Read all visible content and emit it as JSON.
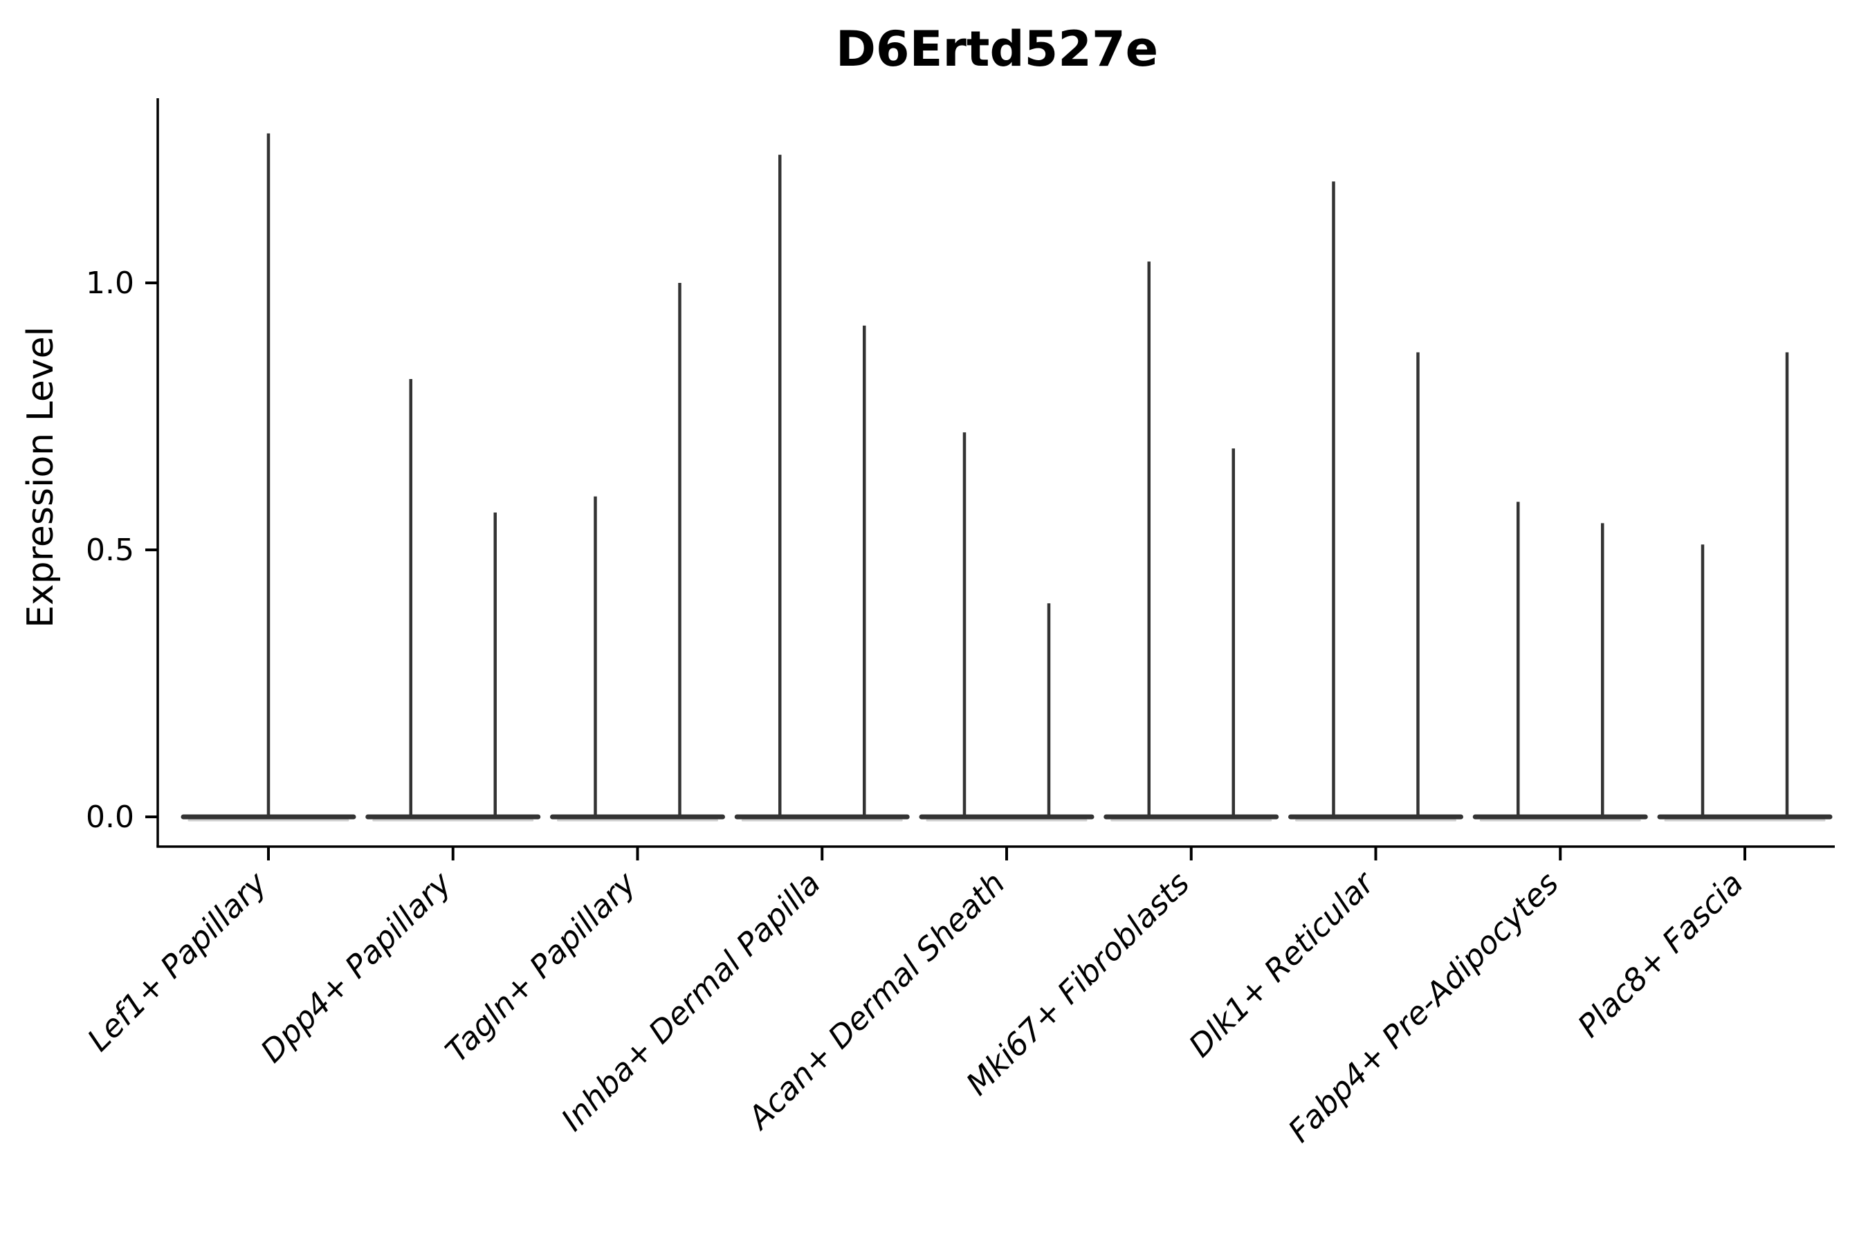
{
  "title": "D6Ertd527e",
  "y_axis": {
    "label": "Expression Level",
    "tick_labels": [
      "0.0",
      "0.5",
      "1.0"
    ],
    "tick_values": [
      0.0,
      0.5,
      1.0
    ]
  },
  "x_axis": {
    "categories": [
      "Lef1+ Papillary",
      "Dpp4+ Papillary",
      "Tagln+ Papillary",
      "Inhba+ Dermal Papilla",
      "Acan+ Dermal Sheath",
      "Mki67+ Fibroblasts",
      "Dlk1+ Reticular",
      "Fabp4+ Pre-Adipocytes",
      "Plac8+ Fascia"
    ]
  },
  "style": {
    "violin_color": "#333333",
    "violin_fill_fringe": "#aaaaaa",
    "axis_color": "#000000",
    "background": "#ffffff"
  },
  "chart_data": {
    "type": "violin",
    "title": "D6Ertd527e",
    "xlabel": "",
    "ylabel": "Expression Level",
    "ylim": [
      -0.06,
      1.35
    ],
    "yticks": [
      0.0,
      0.5,
      1.0
    ],
    "grid": false,
    "legend": "none",
    "categories": [
      "Lef1+ Papillary",
      "Dpp4+ Papillary",
      "Tagln+ Papillary",
      "Inhba+ Dermal Papilla",
      "Acan+ Dermal Sheath",
      "Mki67+ Fibroblasts",
      "Dlk1+ Reticular",
      "Fabp4+ Pre-Adipocytes",
      "Plac8+ Fascia"
    ],
    "series": [
      {
        "category": "Lef1+ Papillary",
        "violin_peaks": [
          1.28
        ]
      },
      {
        "category": "Dpp4+ Papillary",
        "violin_peaks": [
          0.82,
          0.57
        ]
      },
      {
        "category": "Tagln+ Papillary",
        "violin_peaks": [
          0.6,
          1.0
        ]
      },
      {
        "category": "Inhba+ Dermal Papilla",
        "violin_peaks": [
          1.24,
          0.92
        ]
      },
      {
        "category": "Acan+ Dermal Sheath",
        "violin_peaks": [
          0.72,
          0.4
        ]
      },
      {
        "category": "Mki67+ Fibroblasts",
        "violin_peaks": [
          1.04,
          0.69
        ]
      },
      {
        "category": "Dlk1+ Reticular",
        "violin_peaks": [
          1.19,
          0.87
        ]
      },
      {
        "category": "Fabp4+ Pre-Adipocytes",
        "violin_peaks": [
          0.59,
          0.55
        ]
      },
      {
        "category": "Plac8+ Fascia",
        "violin_peaks": [
          0.51,
          0.87
        ]
      }
    ],
    "note": "Each violin is collapsed: a wide flat base at expression 0 with a thin vertical spike rising to its peak value."
  }
}
